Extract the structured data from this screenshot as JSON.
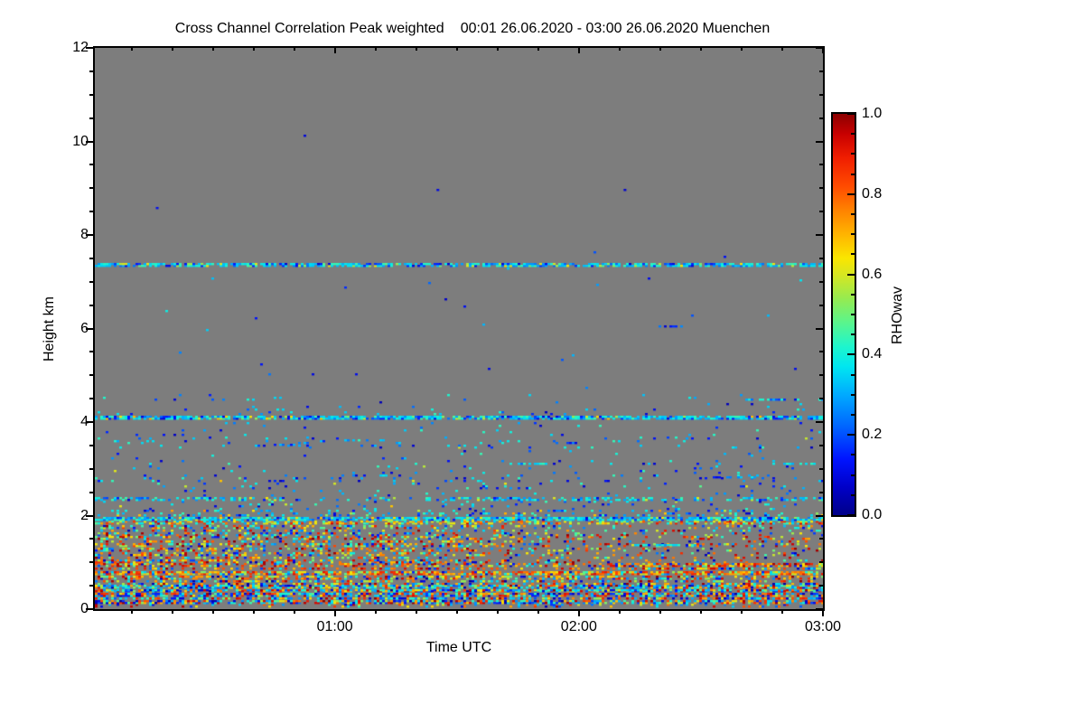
{
  "header": {
    "title": "Cross Channel Correlation Peak weighted",
    "period": "00:01 26.06.2020 - 03:00 26.06.2020 Muenchen"
  },
  "colors": {
    "page_background": "#ffffff",
    "plot_background": "#7d7d7d",
    "axis": "#000000",
    "text": "#000000"
  },
  "chart_data": {
    "type": "heatmap",
    "title": "Cross Channel Correlation Peak weighted",
    "subtitle": "00:01 26.06.2020 - 03:00 26.06.2020 Muenchen",
    "station": "Muenchen",
    "x_axis": {
      "label": "Time UTC",
      "start": "00:01",
      "end": "03:00",
      "start_min": 1,
      "end_min": 180,
      "major_ticks": [
        {
          "min": 60,
          "label": "01:00"
        },
        {
          "min": 120,
          "label": "02:00"
        },
        {
          "min": 180,
          "label": "03:00"
        }
      ],
      "minor_step_min": 10
    },
    "y_axis": {
      "label": "Height km",
      "min": 0,
      "max": 12,
      "major_ticks": [
        0,
        2,
        4,
        6,
        8,
        10,
        12
      ],
      "minor_step_km": 0.5
    },
    "colorbar": {
      "label": "RHOwav",
      "min": 0.0,
      "max": 1.0,
      "ticks": [
        "0.0",
        "0.2",
        "0.4",
        "0.6",
        "0.8",
        "1.0"
      ],
      "minor_step": 0.05,
      "colormap": "rainbow-jet",
      "stops": [
        [
          0.0,
          "#000089"
        ],
        [
          0.07,
          "#0000c8"
        ],
        [
          0.14,
          "#0014ff"
        ],
        [
          0.22,
          "#0064ff"
        ],
        [
          0.3,
          "#00aaff"
        ],
        [
          0.37,
          "#00e6f0"
        ],
        [
          0.42,
          "#1ef5cd"
        ],
        [
          0.48,
          "#5af58c"
        ],
        [
          0.54,
          "#96eb50"
        ],
        [
          0.6,
          "#d7e621"
        ],
        [
          0.64,
          "#fae600"
        ],
        [
          0.7,
          "#ffb400"
        ],
        [
          0.76,
          "#ff8200"
        ],
        [
          0.82,
          "#ff4b00"
        ],
        [
          0.89,
          "#f01e00"
        ],
        [
          0.95,
          "#c80000"
        ],
        [
          1.0,
          "#8c0000"
        ]
      ]
    },
    "no_data_color": "#7d7d7d",
    "cell_minutes": 0.667,
    "cell_km": 0.05,
    "random_seed": 1234,
    "bands": [
      {
        "h": [
          0.02,
          0.1
        ],
        "density": 0.12,
        "mix": [
          [
            0.5,
            0.05,
            0.45
          ],
          [
            0.5,
            0.55,
            1.0
          ]
        ]
      },
      {
        "h": [
          0.1,
          0.38
        ],
        "density": 0.72,
        "mix": [
          [
            0.32,
            0.02,
            0.28
          ],
          [
            0.22,
            0.28,
            0.45
          ],
          [
            0.16,
            0.45,
            0.68
          ],
          [
            0.3,
            0.68,
            1.0
          ]
        ]
      },
      {
        "h": [
          0.38,
          0.52
        ],
        "density": 0.78,
        "mix": [
          [
            0.2,
            0.02,
            0.25
          ],
          [
            0.45,
            0.25,
            0.45
          ],
          [
            0.12,
            0.45,
            0.65
          ],
          [
            0.23,
            0.65,
            1.0
          ]
        ]
      },
      {
        "h": [
          0.52,
          0.72
        ],
        "density": 0.5,
        "mix": [
          [
            0.22,
            0.02,
            0.28
          ],
          [
            0.2,
            0.28,
            0.5
          ],
          [
            0.18,
            0.5,
            0.68
          ],
          [
            0.4,
            0.68,
            1.0
          ]
        ]
      },
      {
        "h": [
          0.72,
          0.84
        ],
        "density": 0.8,
        "mix": [
          [
            0.1,
            0.05,
            0.3
          ],
          [
            0.12,
            0.3,
            0.5
          ],
          [
            0.18,
            0.5,
            0.68
          ],
          [
            0.6,
            0.68,
            0.92
          ]
        ]
      },
      {
        "h": [
          0.84,
          0.97
        ],
        "density": 0.55,
        "t_density": [
          [
            1,
            125,
            0.8
          ],
          [
            125,
            180,
            1.35
          ]
        ],
        "mix": [
          [
            0.15,
            0.05,
            0.3
          ],
          [
            0.12,
            0.3,
            0.5
          ],
          [
            0.13,
            0.5,
            0.68
          ],
          [
            0.6,
            0.68,
            1.0
          ]
        ]
      },
      {
        "h": [
          0.97,
          1.55
        ],
        "density": 0.42,
        "t_density": [
          [
            1,
            95,
            1.0
          ],
          [
            95,
            128,
            0.55
          ],
          [
            128,
            180,
            0.42
          ]
        ],
        "mix": [
          [
            0.16,
            0.02,
            0.28
          ],
          [
            0.18,
            0.28,
            0.48
          ],
          [
            0.22,
            0.48,
            0.68
          ],
          [
            0.44,
            0.68,
            1.0
          ]
        ]
      },
      {
        "h": [
          1.55,
          1.8
        ],
        "density": 0.32,
        "t_density": [
          [
            1,
            95,
            1.0
          ],
          [
            95,
            180,
            0.55
          ]
        ],
        "mix": [
          [
            0.25,
            0.05,
            0.3
          ],
          [
            0.3,
            0.3,
            0.48
          ],
          [
            0.2,
            0.48,
            0.68
          ],
          [
            0.25,
            0.68,
            1.0
          ]
        ]
      },
      {
        "h": [
          1.8,
          1.88
        ],
        "density": 0.5,
        "mix": [
          [
            0.2,
            0.28,
            0.45
          ],
          [
            0.3,
            0.45,
            0.65
          ],
          [
            0.5,
            0.6,
            0.95
          ]
        ]
      },
      {
        "h": [
          1.88,
          1.97
        ],
        "density": 0.8,
        "mix": [
          [
            0.65,
            0.28,
            0.45
          ],
          [
            0.22,
            0.08,
            0.28
          ],
          [
            0.13,
            0.5,
            0.7
          ]
        ]
      },
      {
        "h": [
          1.97,
          2.12
        ],
        "density": 0.22,
        "mix": [
          [
            0.55,
            0.25,
            0.45
          ],
          [
            0.35,
            0.05,
            0.25
          ],
          [
            0.1,
            0.5,
            0.75
          ]
        ]
      },
      {
        "h": [
          2.12,
          2.3
        ],
        "density": 0.07,
        "mix": [
          [
            0.5,
            0.05,
            0.3
          ],
          [
            0.4,
            0.3,
            0.45
          ],
          [
            0.1,
            0.45,
            0.7
          ]
        ]
      },
      {
        "h": [
          2.3,
          2.4
        ],
        "density": 0.4,
        "t_density": [
          [
            1,
            40,
            1.2
          ],
          [
            40,
            80,
            0.45
          ],
          [
            80,
            130,
            1.0
          ],
          [
            130,
            180,
            0.85
          ]
        ],
        "mix": [
          [
            0.65,
            0.28,
            0.45
          ],
          [
            0.25,
            0.08,
            0.28
          ],
          [
            0.1,
            0.45,
            0.65
          ]
        ]
      },
      {
        "h": [
          2.4,
          2.72
        ],
        "density": 0.035,
        "mix": [
          [
            0.6,
            0.05,
            0.3
          ],
          [
            0.35,
            0.3,
            0.45
          ],
          [
            0.05,
            0.45,
            0.65
          ]
        ]
      },
      {
        "h": [
          2.72,
          2.88
        ],
        "density": 0.1,
        "mix": [
          [
            0.55,
            0.05,
            0.28
          ],
          [
            0.4,
            0.28,
            0.45
          ],
          [
            0.05,
            0.5,
            0.7
          ]
        ]
      },
      {
        "h": [
          2.88,
          3.2
        ],
        "density": 0.045,
        "mix": [
          [
            0.5,
            0.05,
            0.3
          ],
          [
            0.45,
            0.3,
            0.45
          ],
          [
            0.05,
            0.5,
            0.7
          ]
        ]
      },
      {
        "h": [
          3.2,
          3.42
        ],
        "density": 0.02,
        "mix": [
          [
            0.6,
            0.05,
            0.3
          ],
          [
            0.4,
            0.3,
            0.45
          ]
        ]
      },
      {
        "h": [
          3.42,
          3.65
        ],
        "density": 0.06,
        "mix": [
          [
            0.45,
            0.05,
            0.3
          ],
          [
            0.5,
            0.3,
            0.45
          ],
          [
            0.05,
            0.5,
            0.7
          ]
        ]
      },
      {
        "h": [
          3.65,
          4.02
        ],
        "density": 0.025,
        "mix": [
          [
            0.55,
            0.05,
            0.3
          ],
          [
            0.45,
            0.3,
            0.45
          ]
        ]
      },
      {
        "h": [
          4.04,
          4.14
        ],
        "density": 0.8,
        "mix": [
          [
            0.62,
            0.28,
            0.45
          ],
          [
            0.28,
            0.08,
            0.28
          ],
          [
            0.1,
            0.45,
            0.7
          ]
        ]
      },
      {
        "h": [
          4.14,
          4.35
        ],
        "density": 0.05,
        "mix": [
          [
            0.55,
            0.05,
            0.3
          ],
          [
            0.45,
            0.3,
            0.45
          ]
        ]
      },
      {
        "h": [
          4.35,
          4.6
        ],
        "density": 0.02,
        "mix": [
          [
            0.5,
            0.05,
            0.3
          ],
          [
            0.5,
            0.3,
            0.45
          ]
        ]
      },
      {
        "h": [
          4.6,
          7.28
        ],
        "density": 0.0015,
        "mix": [
          [
            0.7,
            0.05,
            0.3
          ],
          [
            0.3,
            0.3,
            0.45
          ]
        ]
      },
      {
        "h": [
          7.31,
          7.41
        ],
        "density": 0.72,
        "mix": [
          [
            0.6,
            0.28,
            0.45
          ],
          [
            0.3,
            0.08,
            0.28
          ],
          [
            0.1,
            0.45,
            0.65
          ]
        ]
      },
      {
        "h": [
          7.45,
          12.0
        ],
        "density": 0.00015,
        "mix": [
          [
            1.0,
            0.05,
            0.3
          ]
        ]
      }
    ],
    "segments": [
      {
        "t": [
          160,
          180
        ],
        "h": 4.45,
        "density": 0.55,
        "mix": [
          [
            0.8,
            0.3,
            0.45
          ],
          [
            0.2,
            0.1,
            0.3
          ]
        ]
      },
      {
        "t": [
          62,
          72
        ],
        "h": 3.58,
        "density": 0.5,
        "mix": [
          [
            0.8,
            0.3,
            0.45
          ],
          [
            0.2,
            0.1,
            0.3
          ]
        ]
      },
      {
        "t": [
          44,
          52
        ],
        "h": 3.48,
        "density": 0.5,
        "mix": [
          [
            0.7,
            0.3,
            0.45
          ],
          [
            0.3,
            0.1,
            0.3
          ]
        ]
      },
      {
        "t": [
          103,
          112
        ],
        "h": 3.08,
        "density": 0.55,
        "mix": [
          [
            0.8,
            0.3,
            0.45
          ],
          [
            0.2,
            0.1,
            0.3
          ]
        ]
      },
      {
        "t": [
          114,
          125
        ],
        "h": 3.52,
        "density": 0.45,
        "mix": [
          [
            0.6,
            0.05,
            0.3
          ],
          [
            0.4,
            0.3,
            0.45
          ]
        ]
      },
      {
        "t": [
          153,
          166
        ],
        "h": 2.8,
        "density": 0.5,
        "mix": [
          [
            0.7,
            0.05,
            0.3
          ],
          [
            0.3,
            0.3,
            0.45
          ]
        ]
      },
      {
        "t": [
          167,
          178
        ],
        "h": 3.08,
        "density": 0.5,
        "mix": [
          [
            0.75,
            0.3,
            0.45
          ],
          [
            0.25,
            0.1,
            0.3
          ]
        ]
      },
      {
        "t": [
          139,
          147
        ],
        "h": 6.02,
        "density": 0.45,
        "mix": [
          [
            1.0,
            0.08,
            0.3
          ]
        ]
      },
      {
        "t": [
          95,
          110
        ],
        "h": 2.55,
        "density": 0.3,
        "mix": [
          [
            0.8,
            0.08,
            0.3
          ],
          [
            0.2,
            0.3,
            0.45
          ]
        ]
      },
      {
        "t": [
          133,
          150
        ],
        "h": 1.35,
        "density": 0.6,
        "mix": [
          [
            0.5,
            0.3,
            0.45
          ],
          [
            0.2,
            0.5,
            0.7
          ],
          [
            0.3,
            0.08,
            0.3
          ]
        ]
      }
    ],
    "isolated_points": [
      {
        "t": 16,
        "h": 8.55,
        "v": 0.12
      },
      {
        "t": 85,
        "h": 8.94,
        "v": 0.1
      },
      {
        "t": 131,
        "h": 8.94,
        "v": 0.08
      }
    ]
  }
}
